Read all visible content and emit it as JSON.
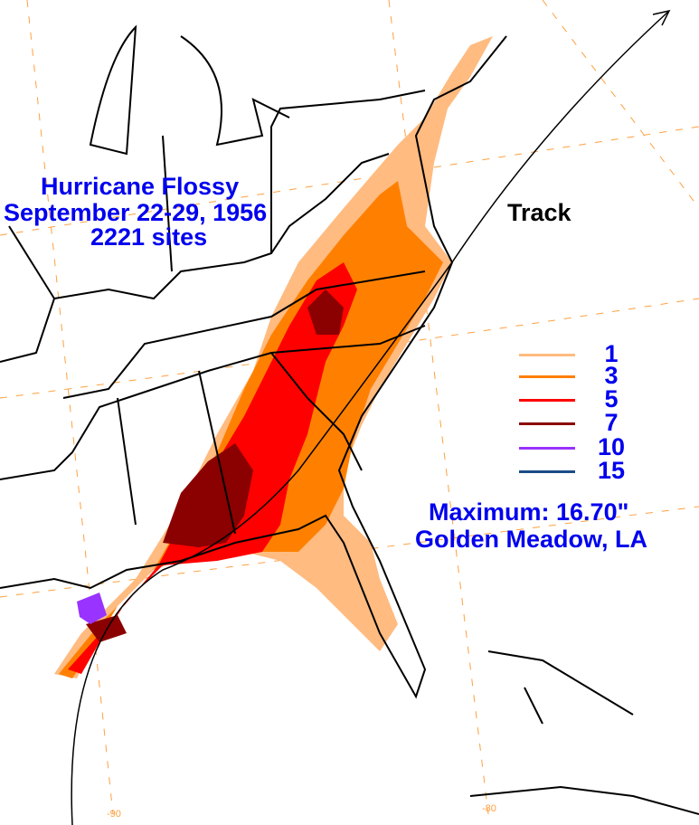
{
  "title": {
    "line1": "Hurricane Flossy",
    "line2": "September 22-29, 1956",
    "line3": "2221 sites"
  },
  "track_label": "Track",
  "legend": [
    {
      "label": "1",
      "color": "#ffbb80"
    },
    {
      "label": "3",
      "color": "#ff8000"
    },
    {
      "label": "5",
      "color": "#ff0000"
    },
    {
      "label": "7",
      "color": "#8b0000"
    },
    {
      "label": "10",
      "color": "#9933ff"
    },
    {
      "label": "15",
      "color": "#1a4c88"
    }
  ],
  "maximum": {
    "line1": "Maximum:  16.70\"",
    "line2": "Golden Meadow, LA"
  },
  "graticule_labels": {
    "lon_90": "-90",
    "lon_80": "-80"
  }
}
